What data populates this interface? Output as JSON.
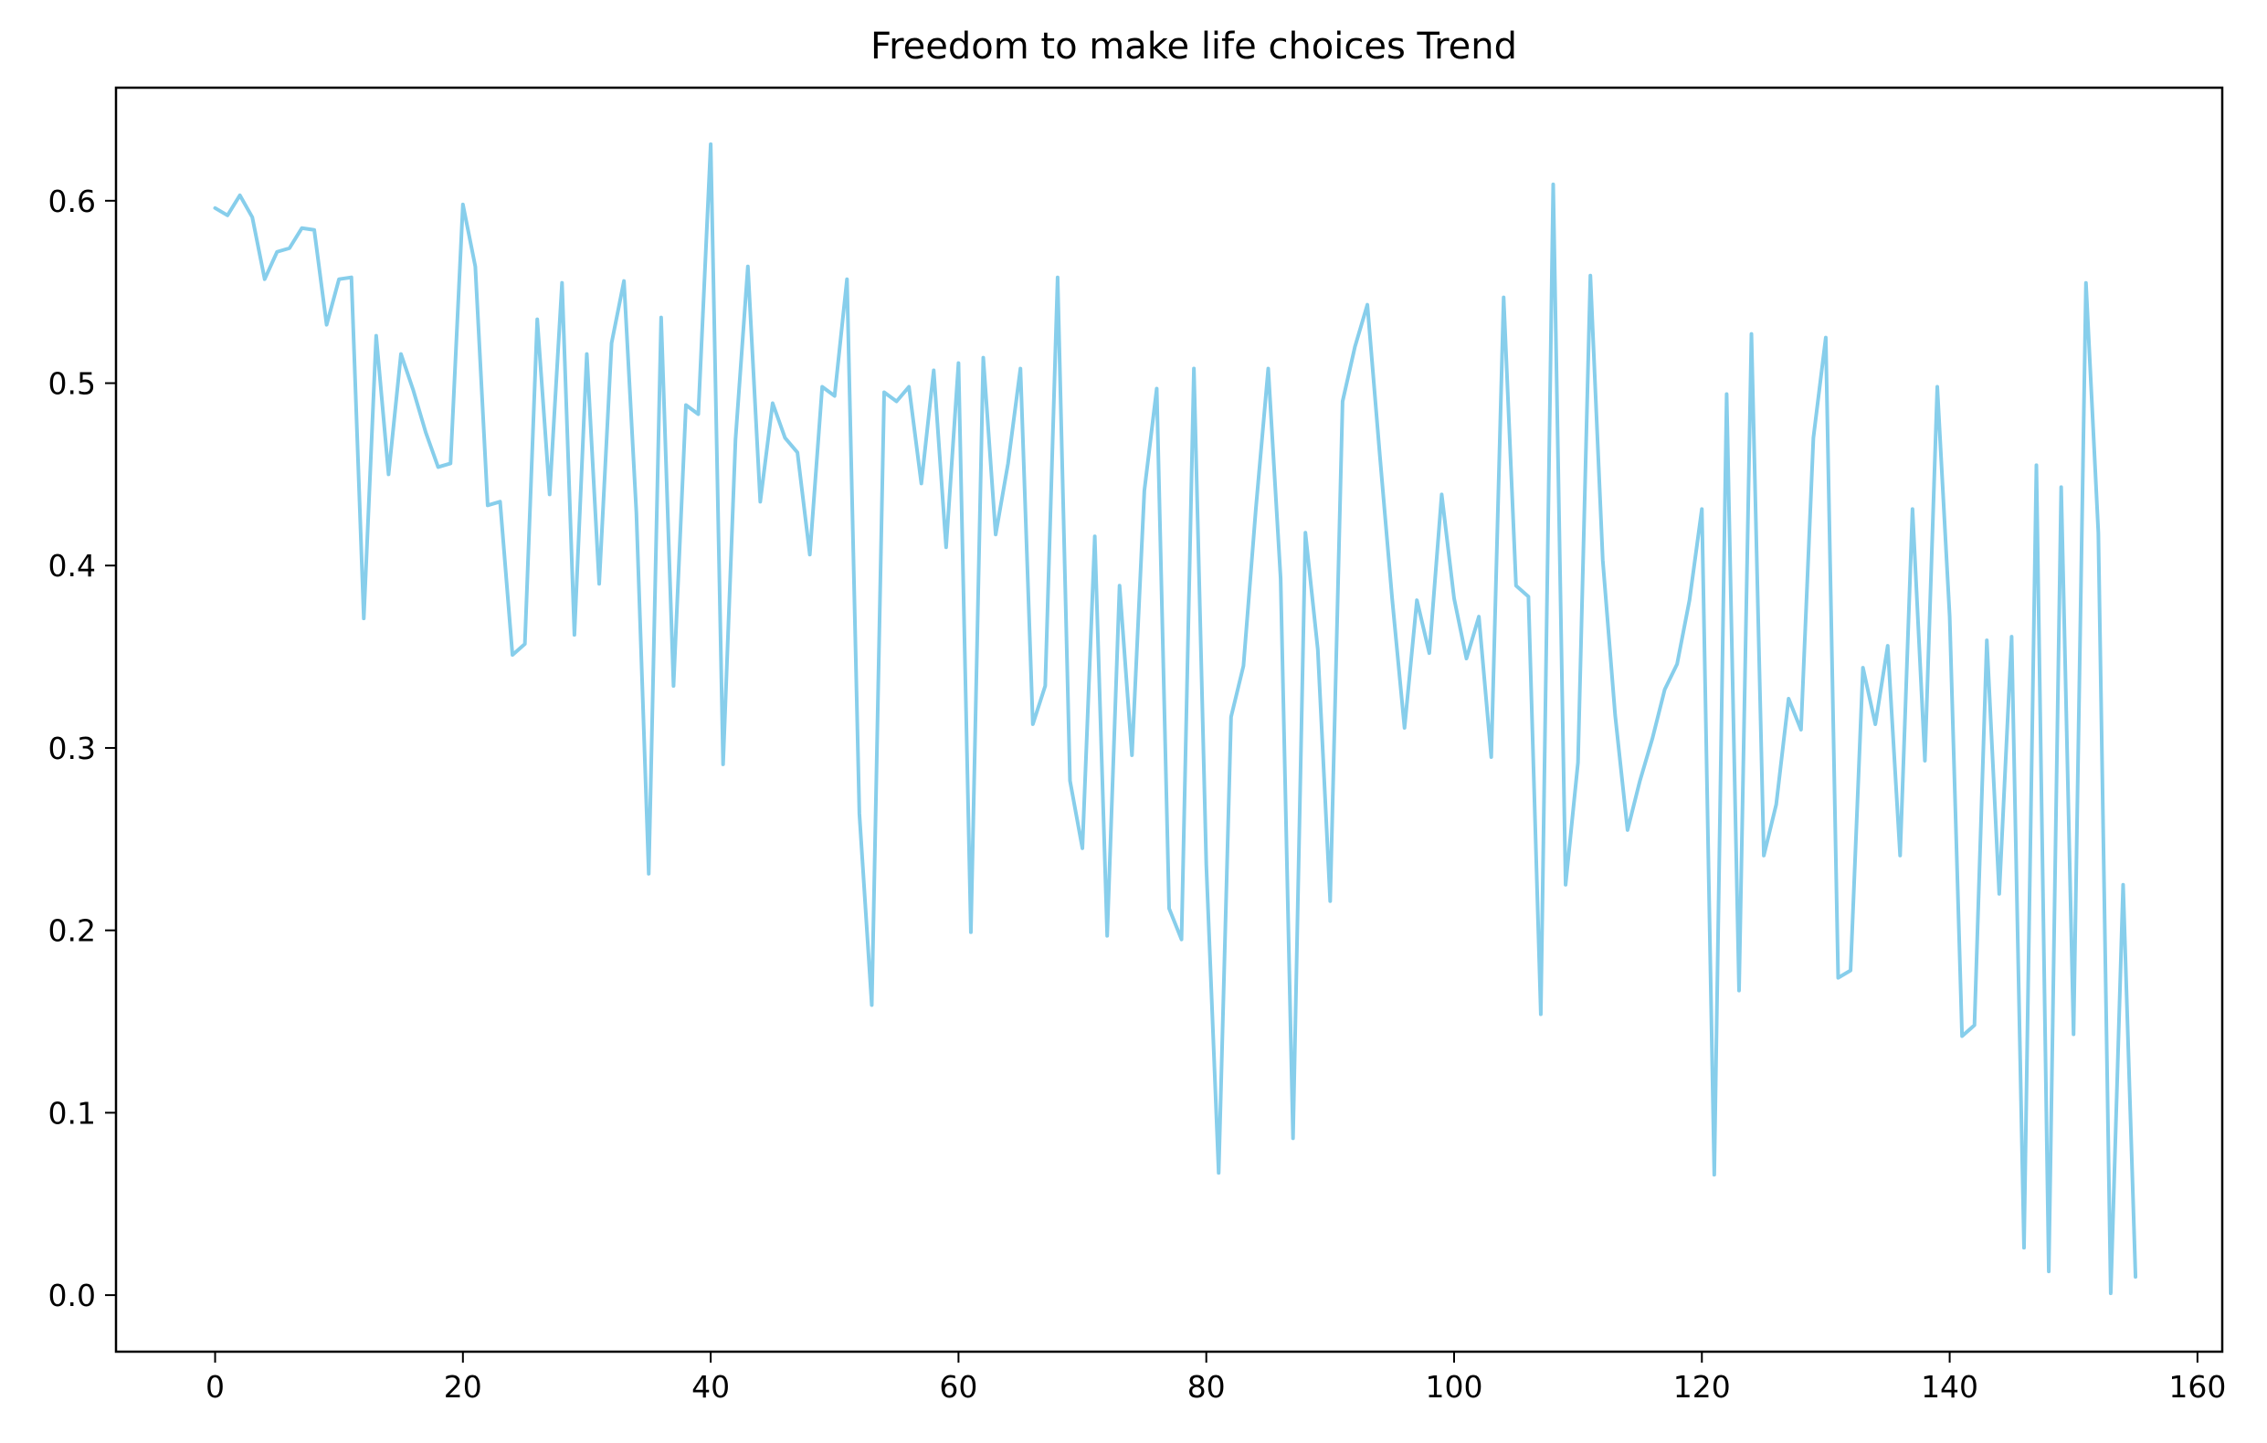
{
  "chart_data": {
    "type": "line",
    "title": "Freedom to make life choices Trend",
    "xlabel": "",
    "ylabel": "",
    "xlim": [
      -8,
      162
    ],
    "ylim": [
      -0.031,
      0.662
    ],
    "x_ticks": [
      0,
      20,
      40,
      60,
      80,
      100,
      120,
      140,
      160
    ],
    "y_ticks": [
      0.0,
      0.1,
      0.2,
      0.3,
      0.4,
      0.5,
      0.6
    ],
    "grid": false,
    "legend": "none",
    "line_color": "#87ceeb",
    "series": [
      {
        "values": [
          0.596,
          0.592,
          0.603,
          0.591,
          0.557,
          0.572,
          0.574,
          0.585,
          0.584,
          0.532,
          0.557,
          0.558,
          0.371,
          0.526,
          0.45,
          0.516,
          0.496,
          0.473,
          0.454,
          0.456,
          0.598,
          0.564,
          0.433,
          0.435,
          0.351,
          0.357,
          0.535,
          0.439,
          0.555,
          0.362,
          0.516,
          0.39,
          0.522,
          0.556,
          0.429,
          0.231,
          0.536,
          0.334,
          0.488,
          0.483,
          0.631,
          0.291,
          0.469,
          0.564,
          0.435,
          0.489,
          0.47,
          0.462,
          0.406,
          0.498,
          0.493,
          0.557,
          0.264,
          0.159,
          0.495,
          0.49,
          0.498,
          0.445,
          0.507,
          0.41,
          0.511,
          0.199,
          0.514,
          0.417,
          0.456,
          0.508,
          0.313,
          0.334,
          0.558,
          0.282,
          0.245,
          0.416,
          0.197,
          0.389,
          0.296,
          0.441,
          0.497,
          0.212,
          0.195,
          0.508,
          0.236,
          0.067,
          0.317,
          0.345,
          0.431,
          0.508,
          0.393,
          0.086,
          0.418,
          0.354,
          0.216,
          0.49,
          0.52,
          0.543,
          0.461,
          0.382,
          0.311,
          0.381,
          0.352,
          0.439,
          0.382,
          0.349,
          0.372,
          0.295,
          0.547,
          0.389,
          0.383,
          0.154,
          0.609,
          0.225,
          0.292,
          0.559,
          0.403,
          0.318,
          0.255,
          0.282,
          0.305,
          0.332,
          0.346,
          0.381,
          0.431,
          0.066,
          0.494,
          0.167,
          0.527,
          0.241,
          0.269,
          0.327,
          0.31,
          0.47,
          0.525,
          0.174,
          0.178,
          0.344,
          0.313,
          0.356,
          0.241,
          0.431,
          0.293,
          0.498,
          0.372,
          0.142,
          0.148,
          0.359,
          0.22,
          0.361,
          0.026,
          0.455,
          0.013,
          0.443,
          0.143,
          0.555,
          0.418,
          0.001,
          0.225,
          0.01
        ]
      }
    ]
  }
}
